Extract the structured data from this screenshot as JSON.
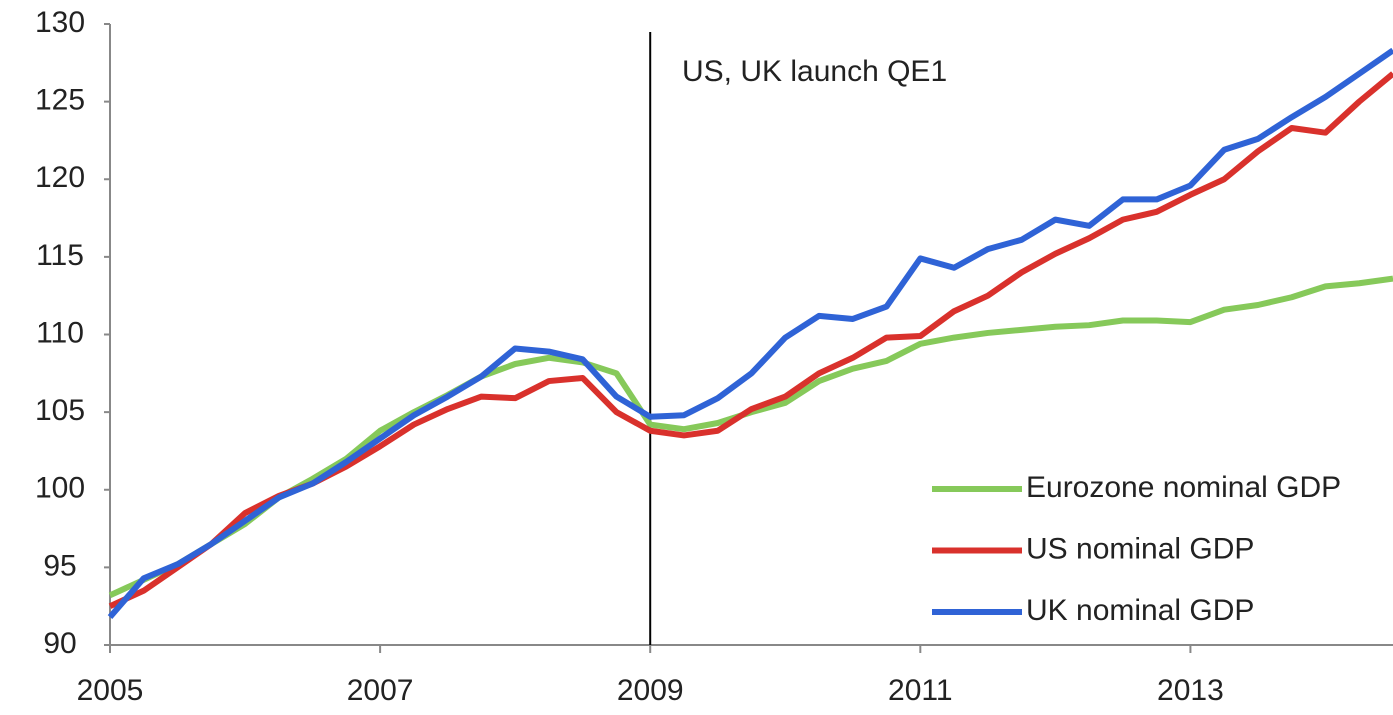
{
  "chart_data": {
    "type": "line",
    "annotation": {
      "text": "US, UK launch QE1",
      "x": 2009
    },
    "x": [
      2005,
      2005.25,
      2005.5,
      2005.75,
      2006,
      2006.25,
      2006.5,
      2006.75,
      2007,
      2007.25,
      2007.5,
      2007.75,
      2008,
      2008.25,
      2008.5,
      2008.75,
      2009,
      2009.25,
      2009.5,
      2009.75,
      2010,
      2010.25,
      2010.5,
      2010.75,
      2011,
      2011.25,
      2011.5,
      2011.75,
      2012,
      2012.25,
      2012.5,
      2012.75,
      2013,
      2013.25,
      2013.5,
      2013.75,
      2014,
      2014.25,
      2014.5
    ],
    "series": [
      {
        "name": "Eurozone nominal GDP",
        "color": "#86c95a",
        "values": [
          93.2,
          94.2,
          95.2,
          96.5,
          97.8,
          99.5,
          100.7,
          102,
          103.8,
          105,
          106.1,
          107.3,
          108.1,
          108.5,
          108.2,
          107.5,
          104.2,
          103.9,
          104.3,
          105,
          105.6,
          107,
          107.8,
          108.3,
          109.4,
          109.8,
          110.1,
          110.3,
          110.5,
          110.6,
          110.9,
          110.9,
          110.8,
          111.6,
          111.9,
          112.4,
          113.1,
          113.3,
          113.6
        ]
      },
      {
        "name": "US nominal GDP",
        "color": "#d9312c",
        "values": [
          92.5,
          93.5,
          95,
          96.5,
          98.5,
          99.6,
          100.4,
          101.5,
          102.8,
          104.2,
          105.2,
          106,
          105.9,
          107,
          107.2,
          105,
          103.8,
          103.5,
          103.8,
          105.2,
          106,
          107.5,
          108.5,
          109.8,
          109.9,
          111.5,
          112.5,
          114,
          115.2,
          116.2,
          117.4,
          117.9,
          119,
          120,
          121.8,
          123.3,
          123,
          125,
          126.8
        ]
      },
      {
        "name": "UK nominal GDP",
        "color": "#2f63d6",
        "values": [
          91.8,
          94.3,
          95.2,
          96.5,
          98,
          99.5,
          100.4,
          101.8,
          103.3,
          104.8,
          106,
          107.3,
          109.1,
          108.9,
          108.4,
          106,
          104.7,
          104.8,
          105.9,
          107.5,
          109.8,
          111.2,
          111,
          111.8,
          114.9,
          114.3,
          115.5,
          116.1,
          117.4,
          117,
          118.7,
          118.7,
          119.6,
          121.9,
          122.6,
          124,
          125.3,
          126.8,
          128.3
        ]
      }
    ],
    "xlim": [
      2005,
      2014.5
    ],
    "xticks": [
      2005,
      2007,
      2009,
      2011,
      2013
    ],
    "ylim": [
      90,
      130
    ],
    "yticks": [
      90,
      95,
      100,
      105,
      110,
      115,
      120,
      125,
      130
    ],
    "legend": "lower right"
  }
}
